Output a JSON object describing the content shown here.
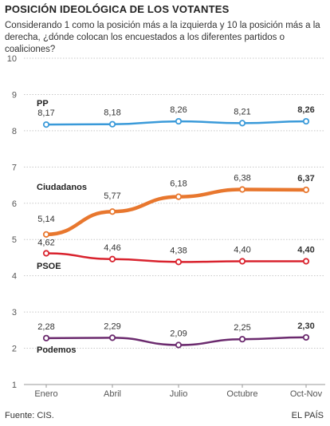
{
  "header": {
    "title": "POSICIÓN IDEOLÓGICA DE LOS VOTANTES",
    "subtitle": "Considerando 1 como la posición más a la izquierda y 10 la posición más a la derecha, ¿dónde colocan los encuestados a los diferentes partidos o coaliciones?"
  },
  "footer": {
    "source": "Fuente: CIS.",
    "brand": "EL PAÍS"
  },
  "chart_data": {
    "type": "line",
    "title": "POSICIÓN IDEOLÓGICA DE LOS VOTANTES",
    "xlabel": "",
    "ylabel": "",
    "categories": [
      "Enero",
      "Abril",
      "Julio",
      "Octubre",
      "Oct-Nov"
    ],
    "ylim": [
      1,
      10
    ],
    "yticks": [
      "1",
      "2",
      "3",
      "4",
      "5",
      "6",
      "7",
      "8",
      "9",
      "10"
    ],
    "grid": true,
    "series": [
      {
        "name": "PP",
        "color": "#3a9ad9",
        "values": [
          8.17,
          8.18,
          8.26,
          8.21,
          8.26
        ],
        "labels": [
          "8,17",
          "8,18",
          "8,26",
          "8,21",
          "8,26"
        ]
      },
      {
        "name": "Ciudadanos",
        "color": "#e8772e",
        "values": [
          5.14,
          5.77,
          6.18,
          6.38,
          6.37
        ],
        "labels": [
          "5,14",
          "5,77",
          "6,18",
          "6,38",
          "6,37"
        ]
      },
      {
        "name": "PSOE",
        "color": "#d9232e",
        "values": [
          4.62,
          4.46,
          4.38,
          4.4,
          4.4
        ],
        "labels": [
          "4,62",
          "4,46",
          "4,38",
          "4,40",
          "4,40"
        ]
      },
      {
        "name": "Podemos",
        "color": "#6b2a6e",
        "values": [
          2.28,
          2.29,
          2.09,
          2.25,
          2.3
        ],
        "labels": [
          "2,28",
          "2,29",
          "2,09",
          "2,25",
          "2,30"
        ]
      }
    ]
  }
}
